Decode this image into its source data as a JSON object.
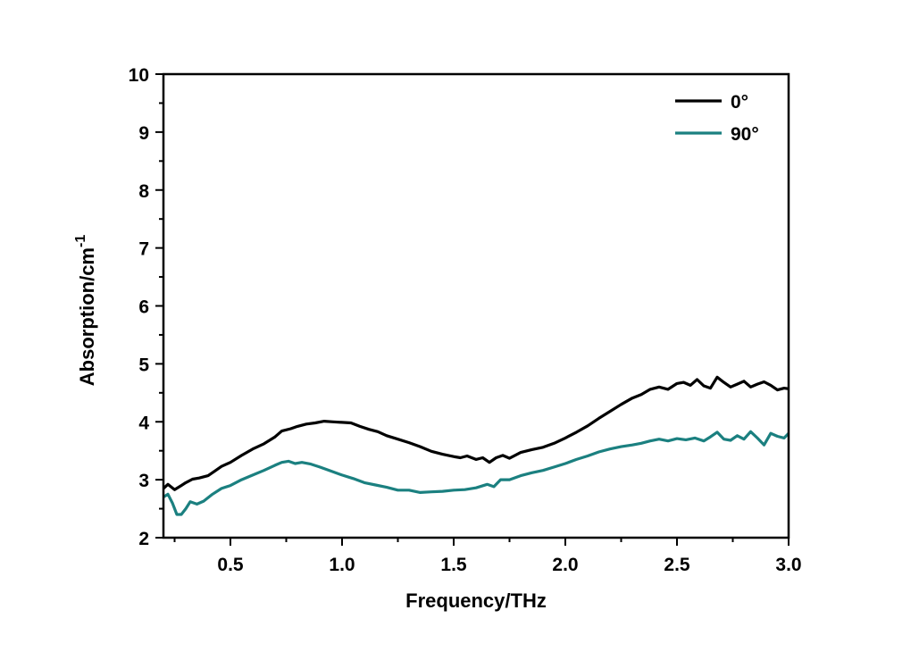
{
  "chart_data": {
    "type": "line",
    "title": "",
    "xlabel": "Frequency/THz",
    "ylabel_main": "Absorption/cm",
    "ylabel_superscript": "-1",
    "xlim": [
      0.2,
      3.0
    ],
    "ylim": [
      2,
      10
    ],
    "xticks": [
      0.5,
      1.0,
      1.5,
      2.0,
      2.5,
      3.0
    ],
    "xtick_labels": [
      "0.5",
      "1.0",
      "1.5",
      "2.0",
      "2.5",
      "3.0"
    ],
    "yticks": [
      2,
      3,
      4,
      5,
      6,
      7,
      8,
      9,
      10
    ],
    "ytick_labels": [
      "2",
      "3",
      "4",
      "5",
      "6",
      "7",
      "8",
      "9",
      "10"
    ],
    "grid": false,
    "legend_position": "top-right",
    "series": [
      {
        "name": "0°",
        "color": "#000000",
        "points": [
          [
            0.2,
            2.85
          ],
          [
            0.22,
            2.92
          ],
          [
            0.25,
            2.83
          ],
          [
            0.28,
            2.9
          ],
          [
            0.3,
            2.95
          ],
          [
            0.33,
            3.01
          ],
          [
            0.36,
            3.03
          ],
          [
            0.4,
            3.07
          ],
          [
            0.43,
            3.15
          ],
          [
            0.46,
            3.23
          ],
          [
            0.5,
            3.3
          ],
          [
            0.55,
            3.42
          ],
          [
            0.6,
            3.53
          ],
          [
            0.65,
            3.62
          ],
          [
            0.7,
            3.74
          ],
          [
            0.73,
            3.84
          ],
          [
            0.77,
            3.88
          ],
          [
            0.8,
            3.92
          ],
          [
            0.84,
            3.96
          ],
          [
            0.88,
            3.98
          ],
          [
            0.92,
            4.01
          ],
          [
            0.96,
            4.0
          ],
          [
            1.0,
            3.99
          ],
          [
            1.04,
            3.98
          ],
          [
            1.08,
            3.92
          ],
          [
            1.12,
            3.87
          ],
          [
            1.16,
            3.83
          ],
          [
            1.2,
            3.76
          ],
          [
            1.25,
            3.7
          ],
          [
            1.3,
            3.64
          ],
          [
            1.35,
            3.57
          ],
          [
            1.4,
            3.49
          ],
          [
            1.45,
            3.44
          ],
          [
            1.5,
            3.4
          ],
          [
            1.53,
            3.38
          ],
          [
            1.56,
            3.41
          ],
          [
            1.6,
            3.35
          ],
          [
            1.63,
            3.38
          ],
          [
            1.66,
            3.3
          ],
          [
            1.69,
            3.38
          ],
          [
            1.72,
            3.42
          ],
          [
            1.75,
            3.37
          ],
          [
            1.8,
            3.47
          ],
          [
            1.85,
            3.52
          ],
          [
            1.9,
            3.56
          ],
          [
            1.95,
            3.63
          ],
          [
            2.0,
            3.72
          ],
          [
            2.05,
            3.82
          ],
          [
            2.1,
            3.93
          ],
          [
            2.15,
            4.06
          ],
          [
            2.2,
            4.18
          ],
          [
            2.25,
            4.3
          ],
          [
            2.3,
            4.41
          ],
          [
            2.34,
            4.47
          ],
          [
            2.38,
            4.56
          ],
          [
            2.42,
            4.6
          ],
          [
            2.46,
            4.56
          ],
          [
            2.5,
            4.66
          ],
          [
            2.53,
            4.68
          ],
          [
            2.56,
            4.63
          ],
          [
            2.59,
            4.73
          ],
          [
            2.62,
            4.62
          ],
          [
            2.65,
            4.58
          ],
          [
            2.68,
            4.77
          ],
          [
            2.71,
            4.68
          ],
          [
            2.74,
            4.6
          ],
          [
            2.77,
            4.65
          ],
          [
            2.8,
            4.7
          ],
          [
            2.83,
            4.6
          ],
          [
            2.86,
            4.65
          ],
          [
            2.89,
            4.69
          ],
          [
            2.92,
            4.63
          ],
          [
            2.95,
            4.55
          ],
          [
            2.98,
            4.58
          ],
          [
            3.0,
            4.57
          ]
        ]
      },
      {
        "name": "90°",
        "color": "#1b8080",
        "points": [
          [
            0.2,
            2.7
          ],
          [
            0.22,
            2.75
          ],
          [
            0.24,
            2.6
          ],
          [
            0.26,
            2.4
          ],
          [
            0.28,
            2.4
          ],
          [
            0.3,
            2.5
          ],
          [
            0.32,
            2.62
          ],
          [
            0.35,
            2.58
          ],
          [
            0.38,
            2.63
          ],
          [
            0.42,
            2.75
          ],
          [
            0.46,
            2.85
          ],
          [
            0.5,
            2.9
          ],
          [
            0.55,
            3.0
          ],
          [
            0.6,
            3.08
          ],
          [
            0.65,
            3.16
          ],
          [
            0.7,
            3.25
          ],
          [
            0.73,
            3.3
          ],
          [
            0.76,
            3.32
          ],
          [
            0.79,
            3.28
          ],
          [
            0.82,
            3.3
          ],
          [
            0.86,
            3.27
          ],
          [
            0.9,
            3.22
          ],
          [
            0.95,
            3.15
          ],
          [
            1.0,
            3.08
          ],
          [
            1.05,
            3.02
          ],
          [
            1.1,
            2.95
          ],
          [
            1.15,
            2.91
          ],
          [
            1.2,
            2.87
          ],
          [
            1.25,
            2.82
          ],
          [
            1.3,
            2.82
          ],
          [
            1.35,
            2.78
          ],
          [
            1.4,
            2.79
          ],
          [
            1.45,
            2.8
          ],
          [
            1.5,
            2.82
          ],
          [
            1.55,
            2.83
          ],
          [
            1.6,
            2.86
          ],
          [
            1.65,
            2.92
          ],
          [
            1.68,
            2.88
          ],
          [
            1.71,
            3.0
          ],
          [
            1.75,
            3.0
          ],
          [
            1.8,
            3.07
          ],
          [
            1.85,
            3.12
          ],
          [
            1.9,
            3.16
          ],
          [
            1.95,
            3.22
          ],
          [
            2.0,
            3.28
          ],
          [
            2.05,
            3.35
          ],
          [
            2.1,
            3.41
          ],
          [
            2.15,
            3.48
          ],
          [
            2.2,
            3.53
          ],
          [
            2.25,
            3.57
          ],
          [
            2.3,
            3.6
          ],
          [
            2.34,
            3.63
          ],
          [
            2.38,
            3.67
          ],
          [
            2.42,
            3.7
          ],
          [
            2.46,
            3.67
          ],
          [
            2.5,
            3.71
          ],
          [
            2.54,
            3.69
          ],
          [
            2.58,
            3.72
          ],
          [
            2.62,
            3.67
          ],
          [
            2.65,
            3.74
          ],
          [
            2.68,
            3.82
          ],
          [
            2.71,
            3.7
          ],
          [
            2.74,
            3.68
          ],
          [
            2.77,
            3.76
          ],
          [
            2.8,
            3.7
          ],
          [
            2.83,
            3.83
          ],
          [
            2.86,
            3.72
          ],
          [
            2.89,
            3.6
          ],
          [
            2.92,
            3.8
          ],
          [
            2.95,
            3.75
          ],
          [
            2.98,
            3.72
          ],
          [
            3.0,
            3.8
          ]
        ]
      }
    ]
  }
}
